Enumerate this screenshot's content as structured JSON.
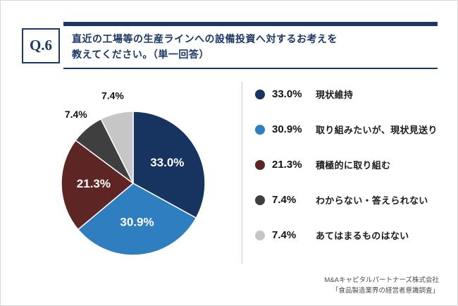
{
  "theme": {
    "navy": "#1b3764",
    "divider": "#c9c9c9",
    "text_dark": "#111111",
    "footer_text": "#4b4b4b"
  },
  "header": {
    "question_number": "Q.6",
    "title_line1": "直近の工場等の生産ラインへの設備投資へ対するお考えを",
    "title_line2": "教えてください。（単一回答）"
  },
  "chart_data": {
    "type": "pie",
    "categories": [
      "現状維持",
      "取り組みたいが、現状見送り",
      "積極的に取り組む",
      "わからない・答えられない",
      "あてはまるものはない"
    ],
    "values": [
      33.0,
      30.9,
      21.3,
      7.4,
      7.4
    ],
    "value_labels": [
      "33.0%",
      "30.9%",
      "21.3%",
      "7.4%",
      "7.4%"
    ],
    "colors": [
      "#17335f",
      "#2e7ec0",
      "#5d2524",
      "#3f3f3f",
      "#c6c6c6"
    ],
    "start_angle_deg": 0,
    "direction": "clockwise",
    "legend_position": "right"
  },
  "footer": {
    "company": "M&Aキャピタルパートナーズ株式会社",
    "survey": "「食品製造業界の経営者意識調査」"
  }
}
